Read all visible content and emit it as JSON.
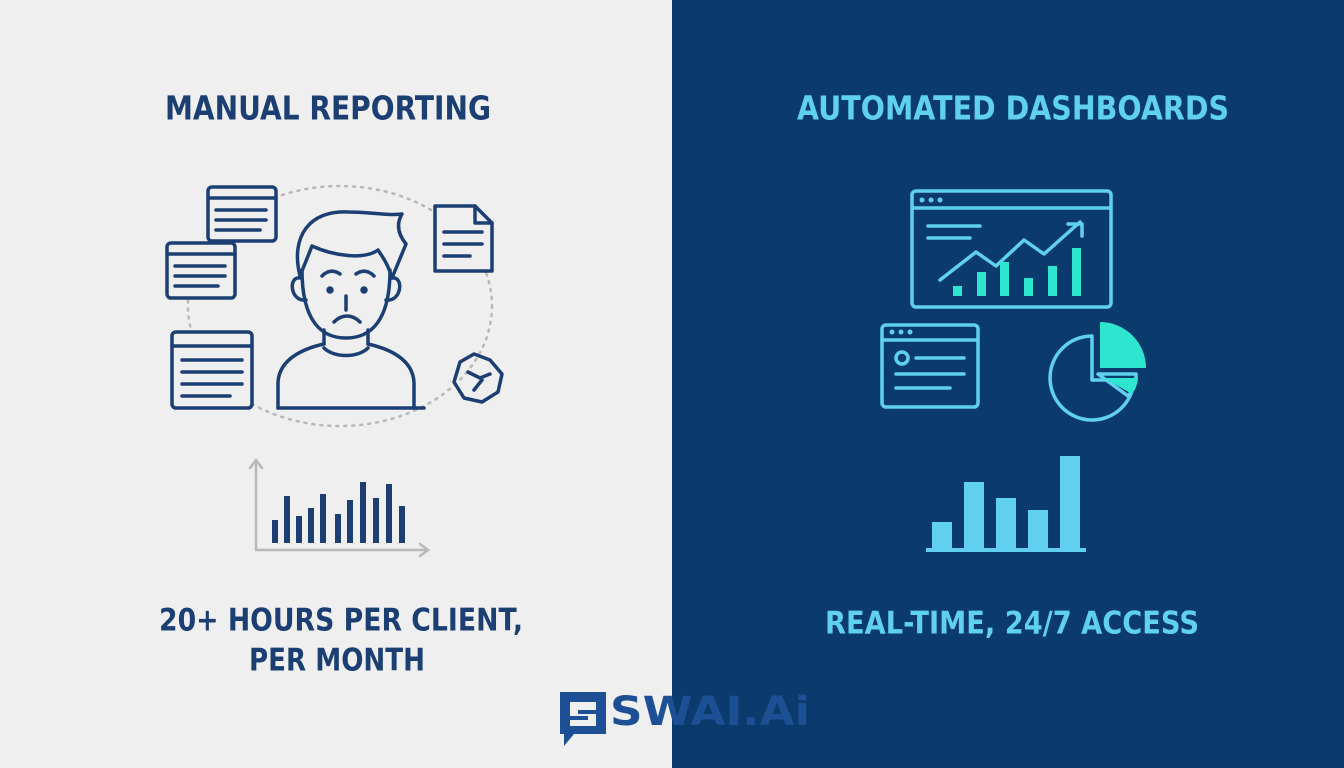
{
  "left": {
    "title": "MANUAL REPORTING",
    "caption": [
      "20+ HOURS PER CLIENT,",
      "PER MONTH"
    ]
  },
  "right": {
    "title": "AUTOMATED DASHBOARDS",
    "caption": "REAL-TIME, 24/7 ACCESS"
  },
  "logo": "SWAI.Ai"
}
